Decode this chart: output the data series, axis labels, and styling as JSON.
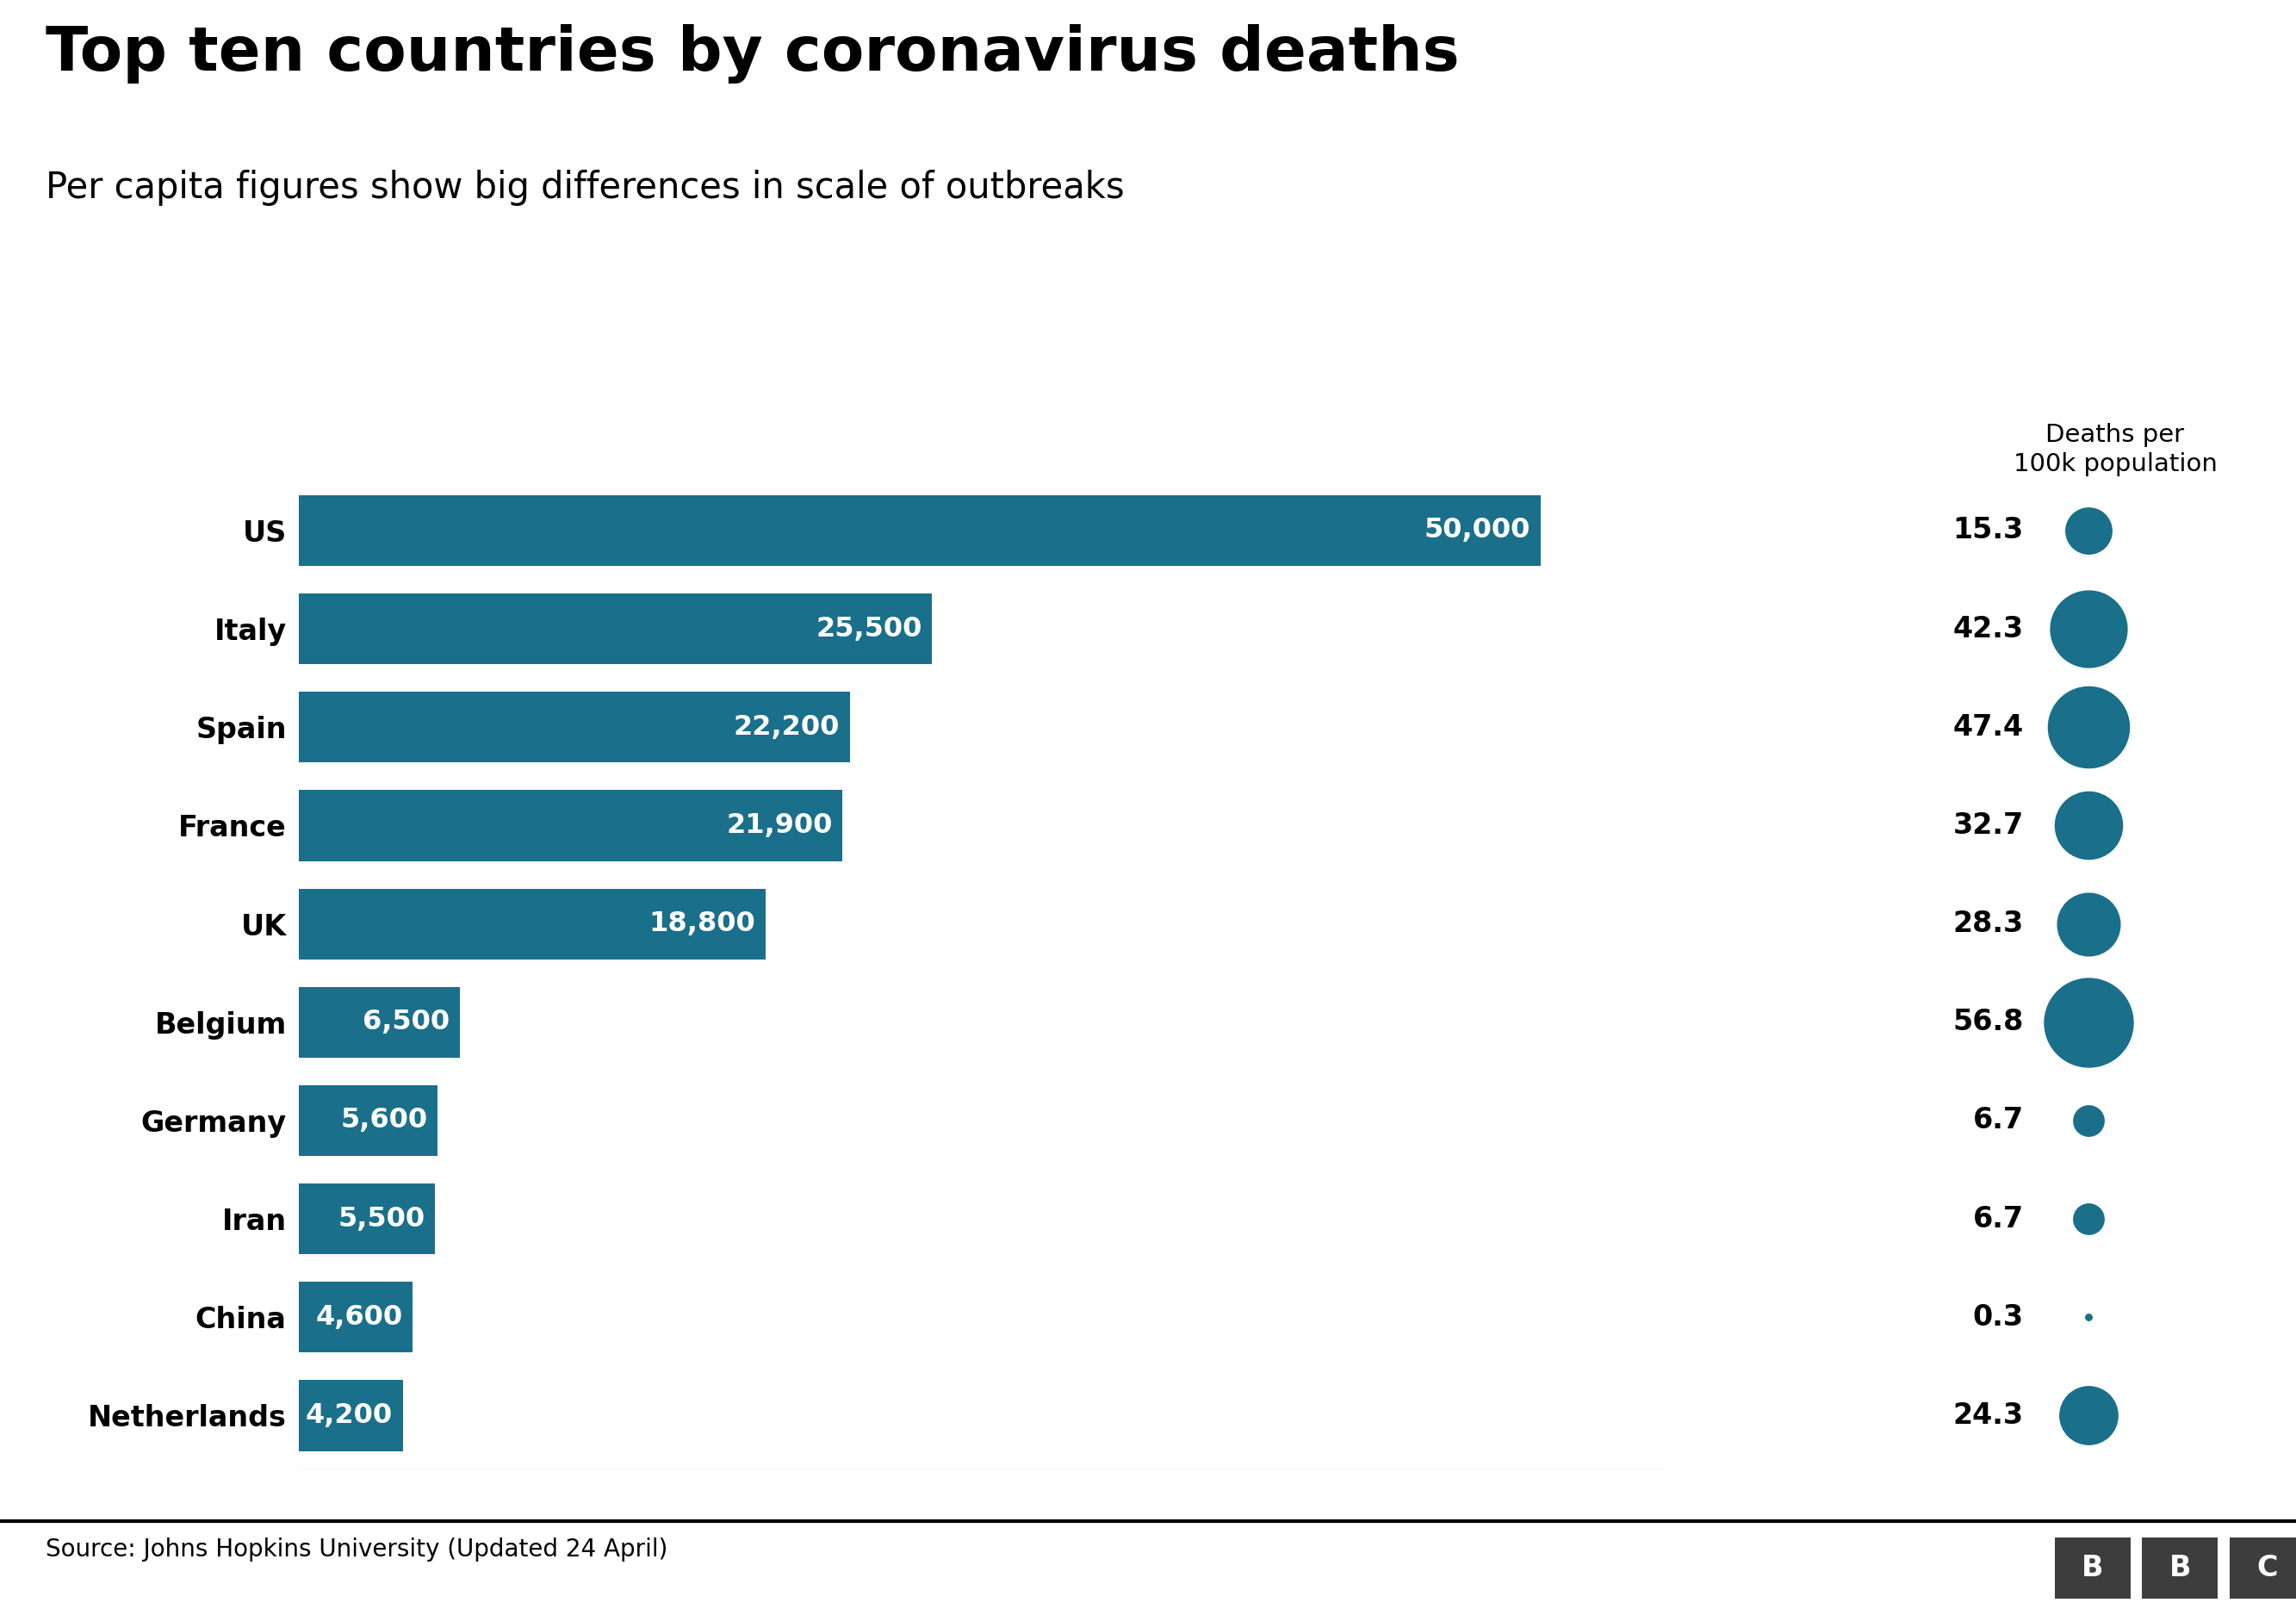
{
  "title": "Top ten countries by coronavirus deaths",
  "subtitle": "Per capita figures show big differences in scale of outbreaks",
  "source": "Source: Johns Hopkins University (Updated 24 April)",
  "bubble_label": "Deaths per\n100k population",
  "bar_color": "#1a6f8a",
  "text_color": "#000000",
  "bg_color": "#ffffff",
  "countries": [
    "US",
    "Italy",
    "Spain",
    "France",
    "UK",
    "Belgium",
    "Germany",
    "Iran",
    "China",
    "Netherlands"
  ],
  "deaths": [
    50000,
    25500,
    22200,
    21900,
    18800,
    6500,
    5600,
    5500,
    4600,
    4200
  ],
  "deaths_labels": [
    "50,000",
    "25,500",
    "22,200",
    "21,900",
    "18,800",
    "6,500",
    "5,600",
    "5,500",
    "4,600",
    "4,200"
  ],
  "per_capita": [
    15.3,
    42.3,
    47.4,
    32.7,
    28.3,
    56.8,
    6.7,
    6.7,
    0.3,
    24.3
  ],
  "per_capita_labels": [
    "15.3",
    "42.3",
    "47.4",
    "32.7",
    "28.3",
    "56.8",
    "6.7",
    "6.7",
    "0.3",
    "24.3"
  ],
  "xlim": [
    0,
    55000
  ],
  "bar_height": 0.72,
  "title_fontsize": 52,
  "subtitle_fontsize": 30,
  "label_fontsize": 24,
  "bar_label_fontsize": 23,
  "source_fontsize": 20,
  "bubble_label_fontsize": 21
}
